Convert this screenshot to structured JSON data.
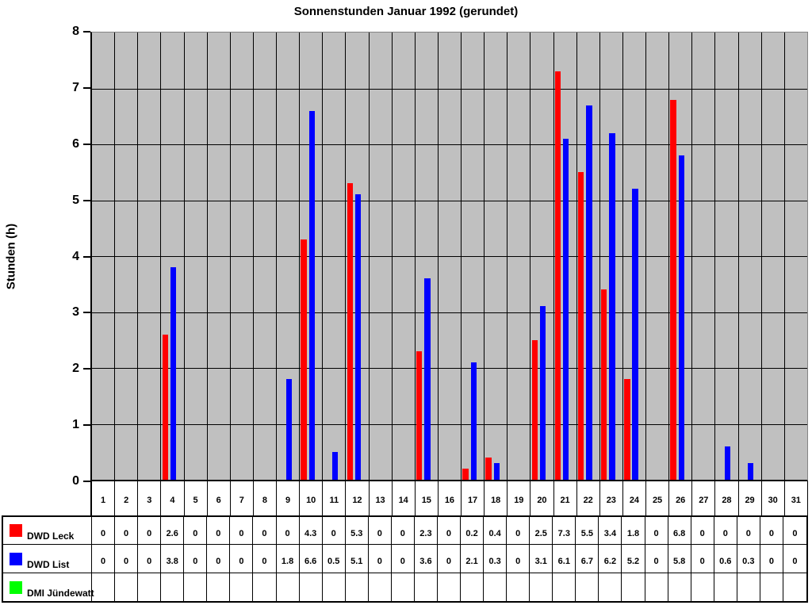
{
  "chart_data": {
    "type": "bar",
    "title": "Sonnenstunden Januar 1992 (gerundet)",
    "ylabel": "Stunden (h)",
    "xlabel": "",
    "ylim": [
      0,
      8
    ],
    "ytick_step": 1,
    "grid": true,
    "plot_background": "#c0c0c0",
    "gridline_color": "#000000",
    "legend_position": "bottom-table",
    "categories": [
      1,
      2,
      3,
      4,
      5,
      6,
      7,
      8,
      9,
      10,
      11,
      12,
      13,
      14,
      15,
      16,
      17,
      18,
      19,
      20,
      21,
      22,
      23,
      24,
      25,
      26,
      27,
      28,
      29,
      30,
      31
    ],
    "series": [
      {
        "name": "DWD Leck",
        "color": "#ff0000",
        "values": [
          0,
          0,
          0,
          2.6,
          0,
          0,
          0,
          0,
          0,
          4.3,
          0,
          5.3,
          0,
          0,
          2.3,
          0,
          0.2,
          0.4,
          0,
          2.5,
          7.3,
          5.5,
          3.4,
          1.8,
          0,
          6.8,
          0,
          0,
          0,
          0,
          0
        ]
      },
      {
        "name": "DWD List",
        "color": "#0000ff",
        "values": [
          0,
          0,
          0,
          3.8,
          0,
          0,
          0,
          0,
          1.8,
          6.6,
          0.5,
          5.1,
          0,
          0,
          3.6,
          0,
          2.1,
          0.3,
          0,
          3.1,
          6.1,
          6.7,
          6.2,
          5.2,
          0,
          5.8,
          0,
          0.6,
          0.3,
          0,
          0
        ]
      },
      {
        "name": "DMI Jündewatt",
        "color": "#00ff00",
        "values": []
      }
    ]
  }
}
